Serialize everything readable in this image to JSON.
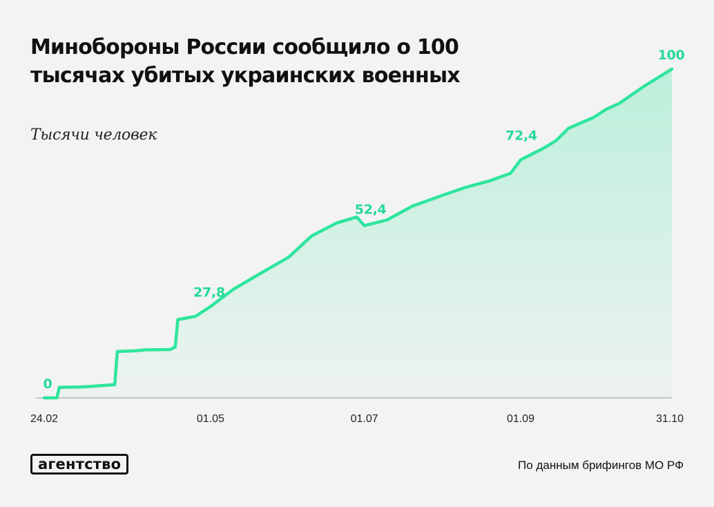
{
  "header": {
    "title": "Минобороны России сообщило о 100 тысячах убитых украинских военных",
    "subtitle": "Тысячи человек"
  },
  "chart_data": {
    "type": "area",
    "title": "Минобороны России сообщило о 100 тысячах убитых украинских военных",
    "ylabel": "Тысячи человек",
    "xlim": [
      "2022-02-24",
      "2022-10-31"
    ],
    "ylim": [
      0,
      100
    ],
    "grid": false,
    "x_ticks": [
      "24.02",
      "01.05",
      "01.07",
      "01.09",
      "31.10"
    ],
    "x_tick_dates": [
      "2022-02-24",
      "2022-05-01",
      "2022-07-01",
      "2022-09-01",
      "2022-10-31"
    ],
    "annotations": [
      {
        "x": "2022-02-24",
        "y": 0,
        "label": "0"
      },
      {
        "x": "2022-05-01",
        "y": 27.8,
        "label": "27,8"
      },
      {
        "x": "2022-07-01",
        "y": 52.4,
        "label": "52,4"
      },
      {
        "x": "2022-09-01",
        "y": 72.4,
        "label": "72,4"
      },
      {
        "x": "2022-10-31",
        "y": 100,
        "label": "100"
      }
    ],
    "series": [
      {
        "x": [
          "2022-02-24",
          "2022-03-01",
          "2022-03-02",
          "2022-03-10",
          "2022-03-15",
          "2022-03-20",
          "2022-03-24",
          "2022-03-25",
          "2022-04-01",
          "2022-04-05",
          "2022-04-15",
          "2022-04-17",
          "2022-04-18",
          "2022-04-25",
          "2022-05-01",
          "2022-05-10",
          "2022-05-20",
          "2022-06-01",
          "2022-06-10",
          "2022-06-20",
          "2022-06-28",
          "2022-07-01",
          "2022-07-10",
          "2022-07-20",
          "2022-08-01",
          "2022-08-10",
          "2022-08-20",
          "2022-08-28",
          "2022-09-01",
          "2022-09-10",
          "2022-09-15",
          "2022-09-20",
          "2022-09-30",
          "2022-10-05",
          "2022-10-10",
          "2022-10-20",
          "2022-10-31"
        ],
        "values": [
          0,
          0,
          3.2,
          3.3,
          3.5,
          3.8,
          4,
          14.1,
          14.3,
          14.6,
          14.7,
          15.5,
          23.8,
          24.8,
          27.8,
          33,
          37.5,
          42.8,
          49.2,
          53.2,
          55,
          52.4,
          54.1,
          58.3,
          61.6,
          64,
          66.1,
          68.3,
          72.4,
          75.9,
          78.2,
          82,
          85.3,
          87.8,
          89.5,
          94.8,
          100
        ]
      }
    ],
    "line_color": "#2ee59d",
    "area_color": "#2ee59d",
    "label_color": "#26d996",
    "axis_color": "#999999"
  },
  "footer": {
    "logo": "агентство",
    "source": "По данным брифингов МО РФ"
  }
}
